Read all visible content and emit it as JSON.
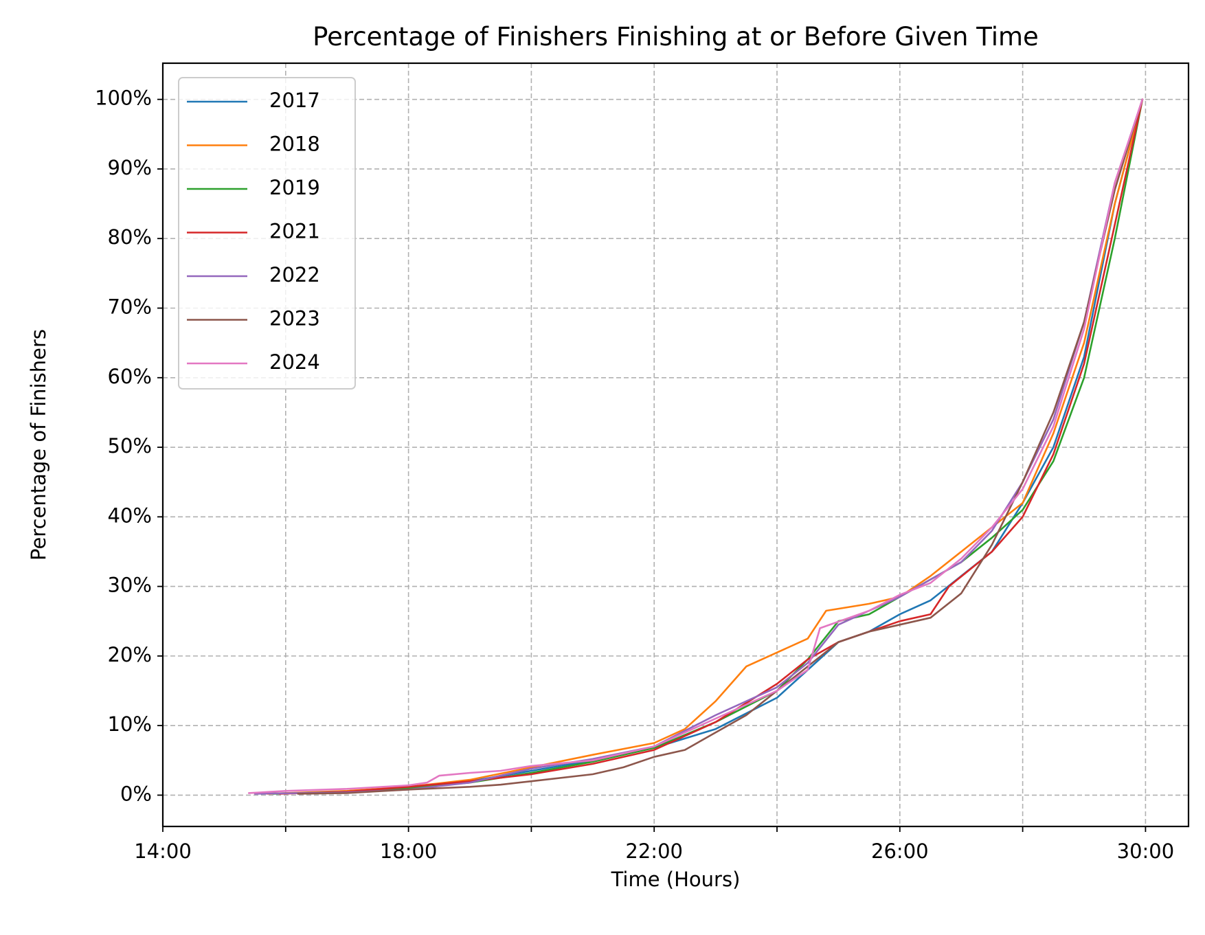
{
  "chart_data": {
    "type": "line",
    "title": "Percentage of Finishers Finishing at or Before Given Time",
    "xlabel": "Time (Hours)",
    "ylabel": "Percentage of Finishers",
    "xlim": [
      14.0,
      30.7
    ],
    "ylim": [
      -4.5,
      105.2
    ],
    "x_ticks": [
      14,
      16,
      18,
      20,
      22,
      24,
      26,
      28,
      30
    ],
    "x_tick_labels": [
      "14:00",
      "",
      "18:00",
      "",
      "22:00",
      "",
      "26:00",
      "",
      "30:00"
    ],
    "y_ticks": [
      0,
      10,
      20,
      30,
      40,
      50,
      60,
      70,
      80,
      90,
      100
    ],
    "y_tick_labels": [
      "0%",
      "10%",
      "20%",
      "30%",
      "40%",
      "50%",
      "60%",
      "70%",
      "80%",
      "90%",
      "100%"
    ],
    "grid": true,
    "legend": "upper-left",
    "series": [
      {
        "name": "2017",
        "color": "#1f77b4",
        "points": [
          [
            15.6,
            0.2
          ],
          [
            17.0,
            0.5
          ],
          [
            18.0,
            1.0
          ],
          [
            19.0,
            2.0
          ],
          [
            20.0,
            3.5
          ],
          [
            21.0,
            5.0
          ],
          [
            22.0,
            6.8
          ],
          [
            23.0,
            9.5
          ],
          [
            24.0,
            14.0
          ],
          [
            24.5,
            18.0
          ],
          [
            25.0,
            22.0
          ],
          [
            25.5,
            23.5
          ],
          [
            26.0,
            26.0
          ],
          [
            26.5,
            28.0
          ],
          [
            27.0,
            31.5
          ],
          [
            27.5,
            35.0
          ],
          [
            28.0,
            42.0
          ],
          [
            28.5,
            50.0
          ],
          [
            29.0,
            63.0
          ],
          [
            29.5,
            85.0
          ],
          [
            29.95,
            100.0
          ]
        ]
      },
      {
        "name": "2018",
        "color": "#ff7f0e",
        "points": [
          [
            15.7,
            0.2
          ],
          [
            17.0,
            0.6
          ],
          [
            18.0,
            1.2
          ],
          [
            19.0,
            2.2
          ],
          [
            20.0,
            4.0
          ],
          [
            21.0,
            5.8
          ],
          [
            22.0,
            7.5
          ],
          [
            22.5,
            9.5
          ],
          [
            23.0,
            13.5
          ],
          [
            23.5,
            18.5
          ],
          [
            24.0,
            20.5
          ],
          [
            24.5,
            22.5
          ],
          [
            24.8,
            26.5
          ],
          [
            25.5,
            27.5
          ],
          [
            26.0,
            28.5
          ],
          [
            26.5,
            31.5
          ],
          [
            27.0,
            35.0
          ],
          [
            27.5,
            38.5
          ],
          [
            28.0,
            42.0
          ],
          [
            28.5,
            52.0
          ],
          [
            29.0,
            65.0
          ],
          [
            29.5,
            85.0
          ],
          [
            29.95,
            100.0
          ]
        ]
      },
      {
        "name": "2019",
        "color": "#2ca02c",
        "points": [
          [
            15.8,
            0.2
          ],
          [
            17.0,
            0.5
          ],
          [
            18.0,
            1.0
          ],
          [
            19.0,
            1.8
          ],
          [
            20.0,
            3.2
          ],
          [
            21.0,
            4.8
          ],
          [
            22.0,
            6.8
          ],
          [
            23.0,
            10.5
          ],
          [
            24.0,
            15.0
          ],
          [
            24.5,
            19.5
          ],
          [
            25.0,
            25.0
          ],
          [
            25.5,
            26.0
          ],
          [
            26.0,
            28.5
          ],
          [
            26.5,
            31.0
          ],
          [
            27.0,
            33.5
          ],
          [
            27.5,
            37.0
          ],
          [
            28.0,
            41.0
          ],
          [
            28.5,
            48.0
          ],
          [
            29.0,
            60.0
          ],
          [
            29.5,
            80.0
          ],
          [
            29.95,
            100.0
          ]
        ]
      },
      {
        "name": "2021",
        "color": "#d62728",
        "points": [
          [
            15.9,
            0.2
          ],
          [
            17.0,
            0.5
          ],
          [
            18.0,
            1.2
          ],
          [
            19.0,
            2.0
          ],
          [
            20.0,
            3.0
          ],
          [
            21.0,
            4.5
          ],
          [
            22.0,
            6.5
          ],
          [
            23.0,
            10.5
          ],
          [
            24.0,
            16.0
          ],
          [
            24.5,
            19.5
          ],
          [
            25.0,
            22.0
          ],
          [
            25.5,
            23.5
          ],
          [
            26.0,
            25.0
          ],
          [
            26.5,
            26.0
          ],
          [
            26.8,
            30.0
          ],
          [
            27.5,
            35.0
          ],
          [
            28.0,
            40.0
          ],
          [
            28.5,
            49.0
          ],
          [
            29.0,
            62.0
          ],
          [
            29.5,
            82.0
          ],
          [
            29.95,
            100.0
          ]
        ]
      },
      {
        "name": "2022",
        "color": "#9467bd",
        "points": [
          [
            15.5,
            0.2
          ],
          [
            17.0,
            0.4
          ],
          [
            18.0,
            0.8
          ],
          [
            19.0,
            1.8
          ],
          [
            20.0,
            3.8
          ],
          [
            21.0,
            5.2
          ],
          [
            22.0,
            7.0
          ],
          [
            23.0,
            11.5
          ],
          [
            24.0,
            15.5
          ],
          [
            24.5,
            19.0
          ],
          [
            25.0,
            24.5
          ],
          [
            25.5,
            26.5
          ],
          [
            26.0,
            28.5
          ],
          [
            26.5,
            31.0
          ],
          [
            27.0,
            33.5
          ],
          [
            27.5,
            38.0
          ],
          [
            28.0,
            45.0
          ],
          [
            28.5,
            54.0
          ],
          [
            29.0,
            68.0
          ],
          [
            29.5,
            88.0
          ],
          [
            29.95,
            100.0
          ]
        ]
      },
      {
        "name": "2023",
        "color": "#8c564b",
        "points": [
          [
            16.2,
            0.2
          ],
          [
            17.0,
            0.3
          ],
          [
            18.0,
            0.8
          ],
          [
            19.0,
            1.2
          ],
          [
            19.5,
            1.5
          ],
          [
            20.0,
            2.0
          ],
          [
            21.0,
            3.0
          ],
          [
            21.5,
            4.0
          ],
          [
            22.0,
            5.5
          ],
          [
            22.5,
            6.5
          ],
          [
            23.0,
            9.0
          ],
          [
            23.5,
            11.5
          ],
          [
            24.0,
            15.0
          ],
          [
            24.5,
            18.5
          ],
          [
            25.0,
            22.0
          ],
          [
            25.5,
            23.5
          ],
          [
            26.0,
            24.5
          ],
          [
            26.5,
            25.5
          ],
          [
            27.0,
            29.0
          ],
          [
            27.5,
            36.0
          ],
          [
            28.0,
            45.0
          ],
          [
            28.5,
            55.0
          ],
          [
            29.0,
            68.0
          ],
          [
            29.5,
            87.0
          ],
          [
            29.95,
            100.0
          ]
        ]
      },
      {
        "name": "2024",
        "color": "#e377c2",
        "points": [
          [
            15.4,
            0.3
          ],
          [
            16.0,
            0.6
          ],
          [
            17.0,
            0.9
          ],
          [
            18.0,
            1.4
          ],
          [
            18.3,
            1.8
          ],
          [
            18.5,
            2.8
          ],
          [
            19.0,
            3.2
          ],
          [
            19.5,
            3.5
          ],
          [
            20.0,
            4.2
          ],
          [
            21.0,
            5.0
          ],
          [
            22.0,
            7.0
          ],
          [
            23.0,
            11.0
          ],
          [
            24.0,
            15.0
          ],
          [
            24.5,
            18.0
          ],
          [
            24.7,
            24.0
          ],
          [
            25.5,
            26.5
          ],
          [
            26.0,
            28.8
          ],
          [
            26.5,
            30.5
          ],
          [
            27.0,
            34.0
          ],
          [
            27.5,
            38.5
          ],
          [
            28.0,
            44.0
          ],
          [
            28.5,
            53.0
          ],
          [
            29.0,
            67.0
          ],
          [
            29.5,
            88.0
          ],
          [
            29.95,
            100.0
          ]
        ]
      }
    ]
  }
}
